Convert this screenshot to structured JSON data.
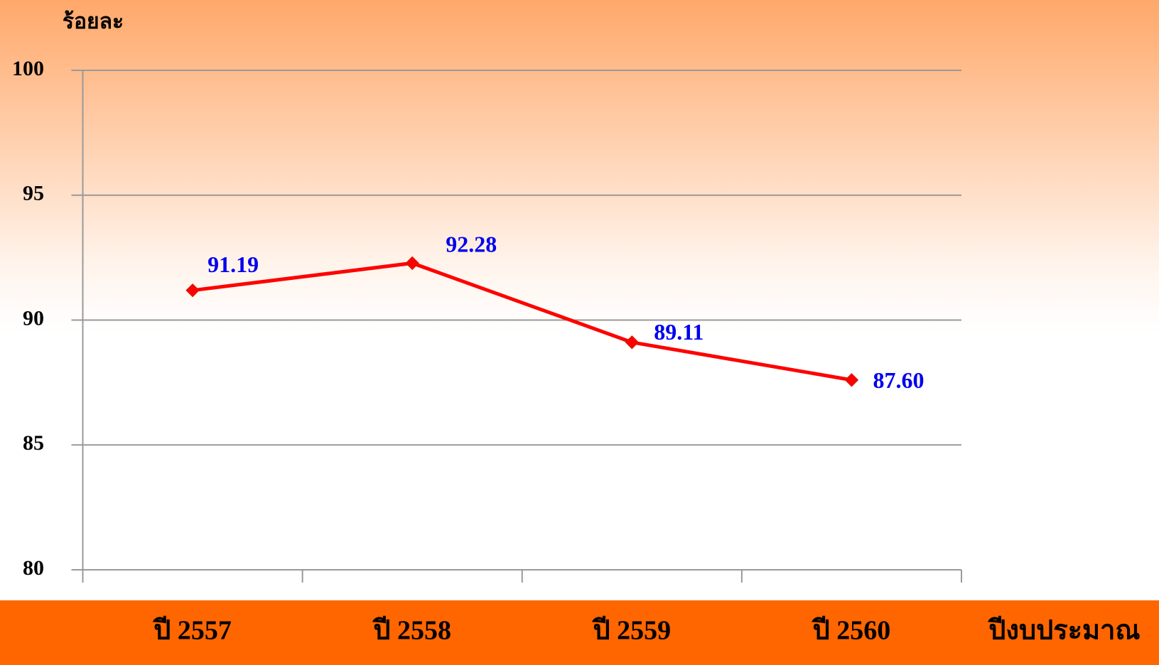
{
  "chart_data": {
    "type": "line",
    "y_axis_label": "ร้อยละ",
    "x_axis_label": "ปีงบประมาณ",
    "categories": [
      "ปี 2557",
      "ปี 2558",
      "ปี 2559",
      "ปี 2560"
    ],
    "series": [
      {
        "name": "ร้อยละ",
        "color": "#ff0000",
        "values": [
          91.19,
          92.28,
          89.11,
          87.6
        ],
        "value_labels": [
          "91.19",
          "92.28",
          "89.11",
          "87.60"
        ]
      }
    ],
    "ylim": [
      80,
      100
    ],
    "yticks": [
      100,
      95,
      90,
      85,
      80
    ],
    "grid": true
  }
}
